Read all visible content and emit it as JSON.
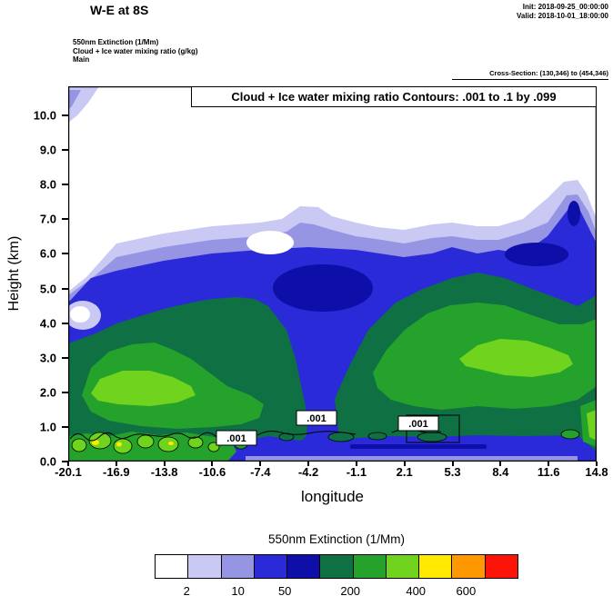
{
  "header": {
    "title": "W-E at 8S",
    "init_line": "Init: 2018-09-25_00:00:00",
    "valid_line": "Valid: 2018-10-01_18:00:00",
    "field_line_1": "550nm Extinction  (1/Mm)",
    "field_line_2": "Cloud + Ice water mixing ratio   (g/kg)",
    "field_line_3": "Main",
    "cross_section": "Cross-Section: (130,346) to (454,346)"
  },
  "plot": {
    "inner_title": "Cloud + Ice water mixing ratio Contours: .001 to .1 by .099",
    "ylabel": "Height (km)",
    "xlabel": "longitude",
    "contour_label": ".001"
  },
  "chart_data": {
    "type": "filled-contour-cross-section",
    "title": "W-E at 8S",
    "fill_variable": "550nm Extinction (1/Mm)",
    "overlay_variable": "Cloud + Ice water mixing ratio (g/kg)",
    "overlay_contour_levels": ".001 to .1 by .099",
    "description": "Vertical west-east cross-section at 8S of 550nm aerosol extinction. A deep aerosol layer extends from the surface to about 6-7 km across all longitudes; highest extinction (bright green, 200-400 1/Mm) occurs near 2-2.5 km around -17 to -12 longitude and near 3-4 km around 5 to 12 longitude, with yellow specks (400-600) near 0.5 km at the far west. A low-extinction blue notch cuts down to about 1.5 km near -4 longitude, and cloud/ice mixing-ratio .001 contours outline shallow features near 0.5-1 km.",
    "x_axis": {
      "label": "longitude",
      "tick_labels": [
        "-20.1",
        "-16.9",
        "-13.8",
        "-10.6",
        "-7.4",
        "-4.2",
        "-1.1",
        "2.1",
        "5.3",
        "8.4",
        "11.6",
        "14.8"
      ],
      "range": [
        -20.1,
        14.8
      ]
    },
    "y_axis": {
      "label": "Height (km)",
      "tick_labels": [
        "0.0",
        "1.0",
        "2.0",
        "3.0",
        "4.0",
        "5.0",
        "6.0",
        "7.0",
        "8.0",
        "9.0",
        "10.0"
      ],
      "range": [
        0,
        10.85
      ]
    },
    "colorbar": {
      "title": "550nm Extinction  (1/Mm)",
      "colors": [
        "#ffffff",
        "#c9c9f3",
        "#9595e4",
        "#2a2ad8",
        "#0e0ea8",
        "#0f7044",
        "#25a22b",
        "#70d41f",
        "#ffe900",
        "#ff9800",
        "#fb1407"
      ],
      "tick_labels": [
        {
          "text": "2",
          "pct": 8.8
        },
        {
          "text": "10",
          "pct": 22.9
        },
        {
          "text": "50",
          "pct": 35.8
        },
        {
          "text": "200",
          "pct": 53.8
        },
        {
          "text": "400",
          "pct": 71.8
        },
        {
          "text": "600",
          "pct": 85.6
        }
      ]
    }
  }
}
